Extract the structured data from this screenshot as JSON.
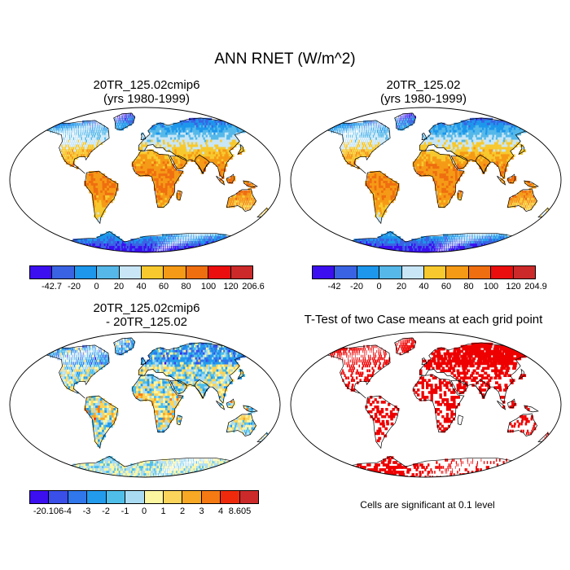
{
  "title": "ANN RNET (W/m^2)",
  "panels": [
    {
      "id": "p1",
      "title_line1": "20TR_125.02cmip6",
      "title_line2": "(yrs 1980-1999)"
    },
    {
      "id": "p2",
      "title_line1": "20TR_125.02",
      "title_line2": "(yrs 1980-1999)"
    },
    {
      "id": "p3",
      "title_line1": "20TR_125.02cmip6",
      "title_line2": "- 20TR_125.02"
    },
    {
      "id": "p4",
      "title_line1": "T-Test of two Case means at each grid point"
    }
  ],
  "significance_note": "Cells are significant at 0.1 level",
  "colorbars": [
    {
      "labels": [
        "-42.7",
        "-20",
        "0",
        "20",
        "40",
        "60",
        "80",
        "100",
        "120",
        "206.6"
      ],
      "colors": [
        "#3b0ff0",
        "#3a63e3",
        "#1c97ec",
        "#55b8e9",
        "#c8e6f6",
        "#f7c92f",
        "#f59a16",
        "#ef6e10",
        "#ea0e0e",
        "#cc2a2a"
      ]
    },
    {
      "labels": [
        "-42",
        "-20",
        "0",
        "20",
        "40",
        "60",
        "80",
        "100",
        "120",
        "204.9"
      ],
      "colors": [
        "#3b0ff0",
        "#3a63e3",
        "#1c97ec",
        "#55b8e9",
        "#c8e6f6",
        "#f7c92f",
        "#f59a16",
        "#ef6e10",
        "#ea0e0e",
        "#cc2a2a"
      ]
    },
    {
      "labels": [
        "-20.106",
        "-4",
        "-3",
        "-2",
        "-1",
        "0",
        "1",
        "2",
        "3",
        "4",
        "8.605"
      ],
      "colors": [
        "#3b0ff0",
        "#3a4ee8",
        "#2f77ea",
        "#239bec",
        "#4fbfe9",
        "#a9dcf3",
        "#fdf6a0",
        "#fbd45b",
        "#f7a824",
        "#f57a14",
        "#ef2a0c",
        "#cc2a2a"
      ]
    }
  ]
}
